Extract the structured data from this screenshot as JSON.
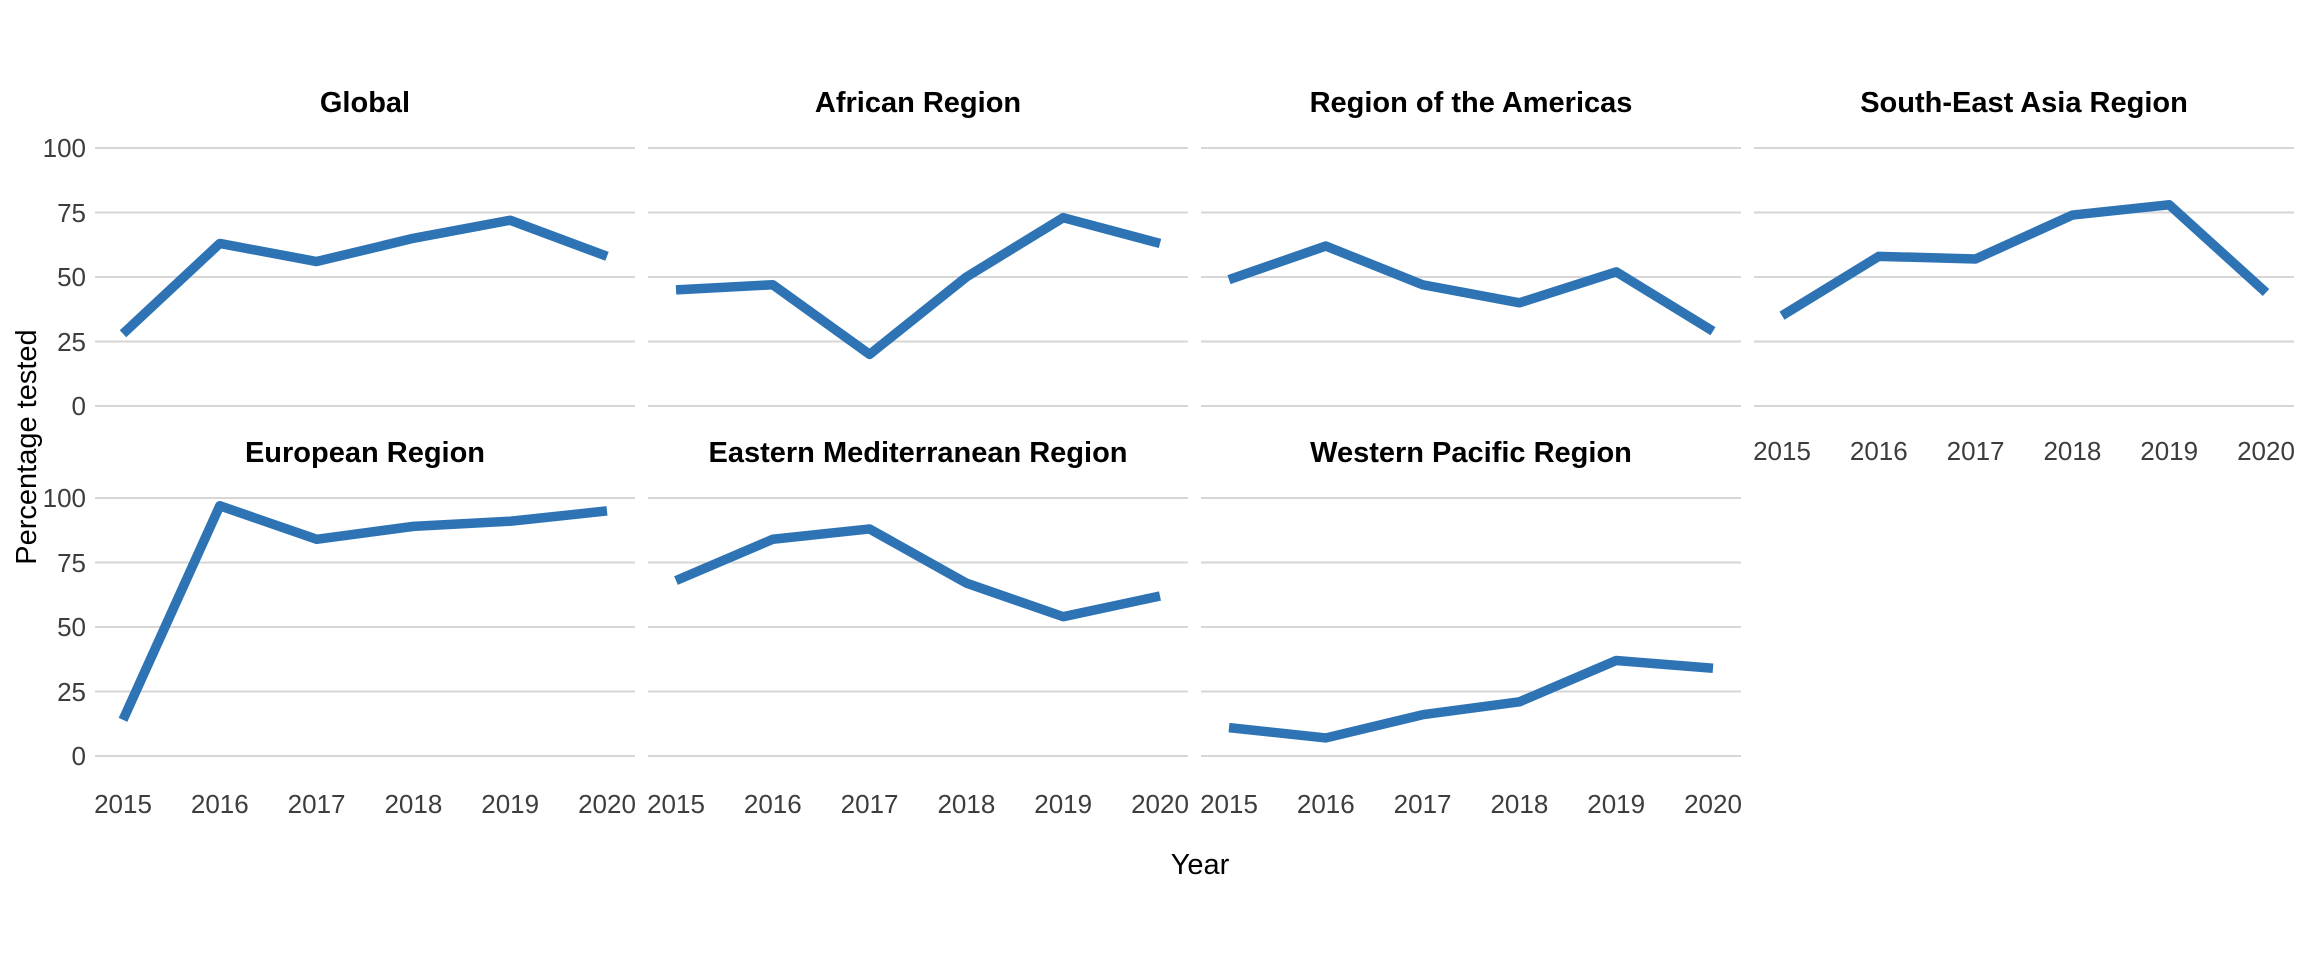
{
  "chart_data": {
    "type": "line",
    "title": "",
    "xlabel": "Year",
    "ylabel": "Percentage tested",
    "x": [
      2015,
      2016,
      2017,
      2018,
      2019,
      2020
    ],
    "x_tick_labels": [
      "2015",
      "2016",
      "2017",
      "2018",
      "2019",
      "2020"
    ],
    "y_ticks": [
      0,
      25,
      50,
      75,
      100
    ],
    "ylim": [
      0,
      100
    ],
    "grid": "horizontal-only",
    "legend": "none",
    "line_color": "#2E74B5",
    "grid_color": "#D6D6D6",
    "tick_label_color": "#3d3d3d",
    "facet_layout": "4 columns x 2 rows, last cell empty",
    "facets": [
      {
        "title": "Global",
        "values": [
          28,
          63,
          56,
          65,
          72,
          58
        ]
      },
      {
        "title": "African Region",
        "values": [
          45,
          47,
          20,
          50,
          73,
          63
        ]
      },
      {
        "title": "Region of the Americas",
        "values": [
          49,
          62,
          47,
          40,
          52,
          29
        ]
      },
      {
        "title": "South-East Asia Region",
        "values": [
          35,
          58,
          57,
          74,
          78,
          44
        ]
      },
      {
        "title": "European Region",
        "values": [
          14,
          97,
          84,
          89,
          91,
          95
        ]
      },
      {
        "title": "Eastern Mediterranean Region",
        "values": [
          68,
          84,
          88,
          67,
          54,
          62
        ]
      },
      {
        "title": "Western Pacific Region",
        "values": [
          11,
          7,
          16,
          21,
          37,
          34
        ]
      }
    ]
  }
}
